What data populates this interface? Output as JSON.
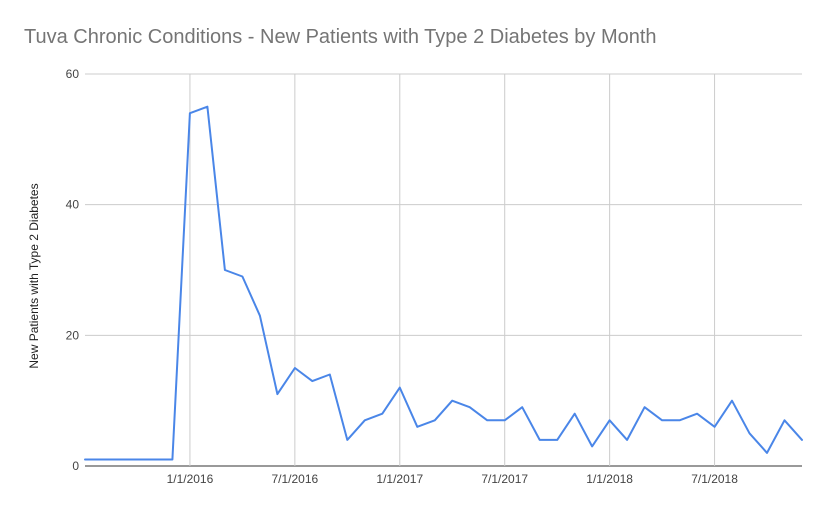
{
  "chart_data": {
    "type": "line",
    "title": "Tuva Chronic Conditions - New Patients with Type 2 Diabetes by Month",
    "xlabel": "",
    "ylabel": "New Patients with Type 2 Diabetes",
    "ylim": [
      0,
      60
    ],
    "yticks": [
      0,
      20,
      40,
      60
    ],
    "y_tick_labels": [
      "0",
      "20",
      "40",
      "60"
    ],
    "grid": true,
    "x_tick_labels": [
      "1/1/2016",
      "7/1/2016",
      "1/1/2017",
      "7/1/2017",
      "1/1/2018",
      "7/1/2018"
    ],
    "x": [
      "2015-07",
      "2015-08",
      "2015-09",
      "2015-10",
      "2015-11",
      "2015-12",
      "2016-01",
      "2016-02",
      "2016-03",
      "2016-04",
      "2016-05",
      "2016-06",
      "2016-07",
      "2016-08",
      "2016-09",
      "2016-10",
      "2016-11",
      "2016-12",
      "2017-01",
      "2017-02",
      "2017-03",
      "2017-04",
      "2017-05",
      "2017-06",
      "2017-07",
      "2017-08",
      "2017-09",
      "2017-10",
      "2017-11",
      "2017-12",
      "2018-01",
      "2018-02",
      "2018-03",
      "2018-04",
      "2018-05",
      "2018-06",
      "2018-07",
      "2018-08",
      "2018-09",
      "2018-10",
      "2018-11",
      "2018-12"
    ],
    "series": [
      {
        "color": "#4a86e8",
        "values": [
          1,
          1,
          1,
          1,
          1,
          1,
          54,
          55,
          30,
          29,
          23,
          11,
          15,
          13,
          14,
          4,
          7,
          8,
          12,
          6,
          7,
          10,
          9,
          7,
          7,
          9,
          4,
          4,
          8,
          3,
          7,
          4,
          9,
          7,
          7,
          8,
          6,
          10,
          5,
          2,
          7,
          4
        ]
      }
    ]
  }
}
